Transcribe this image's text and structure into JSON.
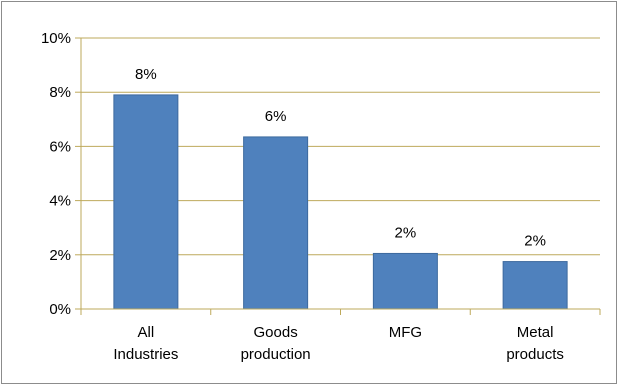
{
  "chart_data": {
    "type": "bar",
    "title": "",
    "xlabel": "",
    "ylabel": "",
    "categories": [
      [
        "All",
        "Industries"
      ],
      [
        "Goods",
        "production"
      ],
      [
        "MFG"
      ],
      [
        "Metal",
        "products"
      ]
    ],
    "values": [
      7.9,
      6.35,
      2.05,
      1.75
    ],
    "data_labels": [
      "8%",
      "6%",
      "2%",
      "2%"
    ],
    "ylim": [
      0,
      10
    ],
    "yticks": [
      0,
      2,
      4,
      6,
      8,
      10
    ],
    "ytick_labels": [
      "0%",
      "2%",
      "4%",
      "6%",
      "8%",
      "10%"
    ],
    "grid": true,
    "legend": false,
    "colors": {
      "bar": "#4f81bd",
      "bar_edge": "#3d6a9e",
      "grid": "#bea95b",
      "axis": "#bea95b",
      "frame": "#8c8c8c"
    }
  }
}
